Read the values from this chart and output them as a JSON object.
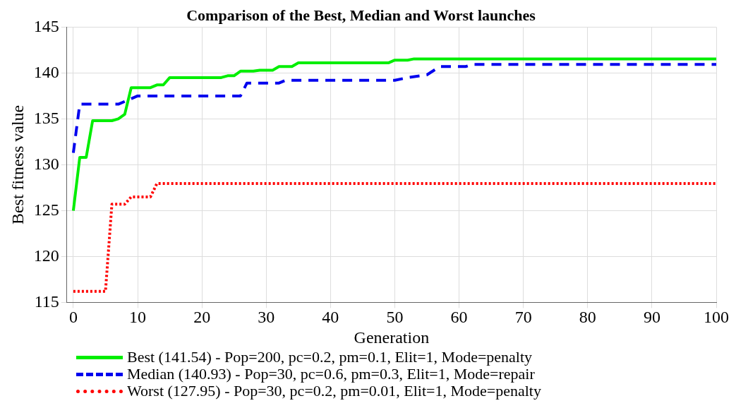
{
  "chart_data": {
    "type": "line",
    "title": "Comparison of the Best, Median and Worst launches",
    "xlabel": "Generation",
    "ylabel": "Best fitness value",
    "xlim": [
      -1,
      100
    ],
    "xticks": [
      0,
      10,
      20,
      30,
      40,
      50,
      60,
      70,
      80,
      90,
      100
    ],
    "ylim": [
      115,
      145
    ],
    "yticks": [
      115,
      120,
      125,
      130,
      135,
      140,
      145
    ],
    "grid": true,
    "legend": "bottom",
    "marker": "none",
    "series": [
      {
        "name": "Best (141.54) - Pop=200, pc=0.2, pm=0.1, Elit=1, Mode=penalty",
        "color": "#00ee00",
        "line_style": "solid",
        "x": [
          0,
          1,
          2,
          3,
          6,
          7,
          8,
          9,
          12,
          13,
          14,
          15,
          23,
          24,
          25,
          26,
          28,
          29,
          31,
          32,
          34,
          35,
          49,
          50,
          52,
          53,
          100
        ],
        "values": [
          125,
          130.8,
          130.8,
          134.8,
          134.8,
          135,
          135.5,
          138.4,
          138.4,
          138.7,
          138.7,
          139.5,
          139.5,
          139.7,
          139.7,
          140.2,
          140.2,
          140.3,
          140.3,
          140.7,
          140.7,
          141.1,
          141.1,
          141.4,
          141.4,
          141.54,
          141.54
        ]
      },
      {
        "name": "Median (140.93) - Pop=30, pc=0.6, pm=0.3, Elit=1, Mode=repair",
        "color": "#0000ee",
        "line_style": "dashed",
        "x": [
          0,
          1,
          7,
          8,
          9,
          10,
          26,
          27,
          32,
          33,
          50,
          52,
          55,
          57,
          61,
          62,
          100
        ],
        "values": [
          131.3,
          136.6,
          136.6,
          136.9,
          137.2,
          137.5,
          137.5,
          138.9,
          138.9,
          139.2,
          139.2,
          139.5,
          139.8,
          140.7,
          140.7,
          140.93,
          140.93
        ]
      },
      {
        "name": "Worst (127.95) - Pop=30, pc=0.2, pm=0.01, Elit=1, Mode=penalty",
        "color": "#ff0000",
        "line_style": "dotted",
        "x": [
          0,
          5,
          6,
          8,
          9,
          12,
          13,
          100
        ],
        "values": [
          116.2,
          116.2,
          125.7,
          125.7,
          126.5,
          126.5,
          127.95,
          127.95
        ]
      }
    ]
  }
}
